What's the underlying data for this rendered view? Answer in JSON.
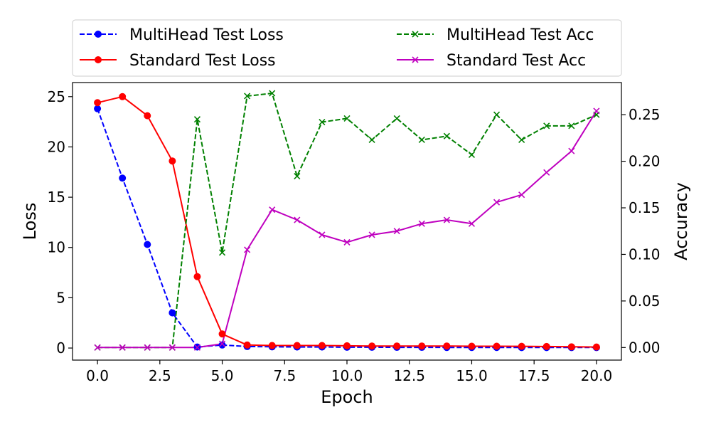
{
  "chart_data": {
    "type": "line",
    "xlabel": "Epoch",
    "ylabel_left": "Loss",
    "ylabel_right": "Accuracy",
    "x_ticks": [
      "0.0",
      "2.5",
      "5.0",
      "7.5",
      "10.0",
      "12.5",
      "15.0",
      "17.5",
      "20.0"
    ],
    "y_left_ticks": [
      "0",
      "5",
      "10",
      "15",
      "20",
      "25"
    ],
    "y_right_ticks": [
      "0.00",
      "0.05",
      "0.10",
      "0.15",
      "0.20",
      "0.25"
    ],
    "xlim": [
      -1.0,
      21.0
    ],
    "ylim_left": [
      -1.2,
      26.4
    ],
    "ylim_right": [
      -0.0135,
      0.2845
    ],
    "grid": false,
    "legend_location": "top",
    "x": [
      0,
      1,
      2,
      3,
      4,
      5,
      6,
      7,
      8,
      9,
      10,
      11,
      12,
      13,
      14,
      15,
      16,
      17,
      18,
      19,
      20
    ],
    "series": [
      {
        "name": "MultiHead Test Loss",
        "axis": "left",
        "color": "#0000ff",
        "linestyle": "dashed",
        "marker": "circle",
        "values": [
          23.8,
          16.9,
          10.3,
          3.5,
          0.1,
          0.3,
          0.15,
          0.12,
          0.1,
          0.1,
          0.08,
          0.08,
          0.07,
          0.07,
          0.06,
          0.06,
          0.06,
          0.05,
          0.05,
          0.05,
          0.05
        ]
      },
      {
        "name": "Standard Test Loss",
        "axis": "left",
        "color": "#ff0000",
        "linestyle": "solid",
        "marker": "circle",
        "values": [
          24.4,
          25.0,
          23.1,
          18.6,
          7.1,
          1.4,
          0.3,
          0.25,
          0.25,
          0.25,
          0.22,
          0.2,
          0.2,
          0.2,
          0.2,
          0.18,
          0.18,
          0.17,
          0.15,
          0.12,
          0.1
        ]
      },
      {
        "name": "MultiHead Test Acc",
        "axis": "right",
        "color": "#008000",
        "linestyle": "dashed",
        "marker": "x",
        "values": [
          0.0,
          0.0,
          0.0,
          0.0,
          0.245,
          0.102,
          0.27,
          0.273,
          0.184,
          0.242,
          0.246,
          0.223,
          0.246,
          0.223,
          0.227,
          0.207,
          0.25,
          0.223,
          0.238,
          0.238,
          0.25
        ]
      },
      {
        "name": "Standard Test Acc",
        "axis": "right",
        "color": "#bf00bf",
        "linestyle": "solid",
        "marker": "x",
        "values": [
          0.0,
          0.0,
          0.0,
          0.0,
          0.0,
          0.004,
          0.105,
          0.148,
          0.137,
          0.121,
          0.113,
          0.121,
          0.125,
          0.133,
          0.137,
          0.133,
          0.156,
          0.164,
          0.188,
          0.211,
          0.254
        ]
      }
    ]
  }
}
